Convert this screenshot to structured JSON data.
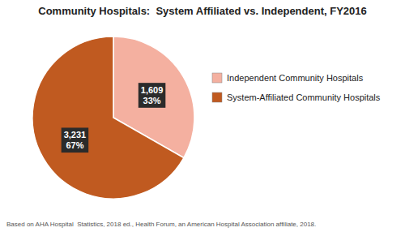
{
  "chart_data": {
    "type": "pie",
    "title": "Community Hospitals:  System Affiliated vs. Independent, FY2016",
    "categories": [
      "Independent Community Hospitals",
      "System-Affiliated Community Hospitals"
    ],
    "values": [
      1609,
      3231
    ],
    "value_labels": [
      "1,609",
      "3,231"
    ],
    "percents": [
      33,
      67
    ],
    "percent_labels": [
      "33%",
      "67%"
    ],
    "colors": [
      "#F4B0A0",
      "#C05A20"
    ],
    "data_labels": true,
    "legend": "right",
    "footnote": "Based on AHA Hospital  Statistics, 2018 ed., Health Forum, an American Hospital Association affiliate, 2018."
  }
}
